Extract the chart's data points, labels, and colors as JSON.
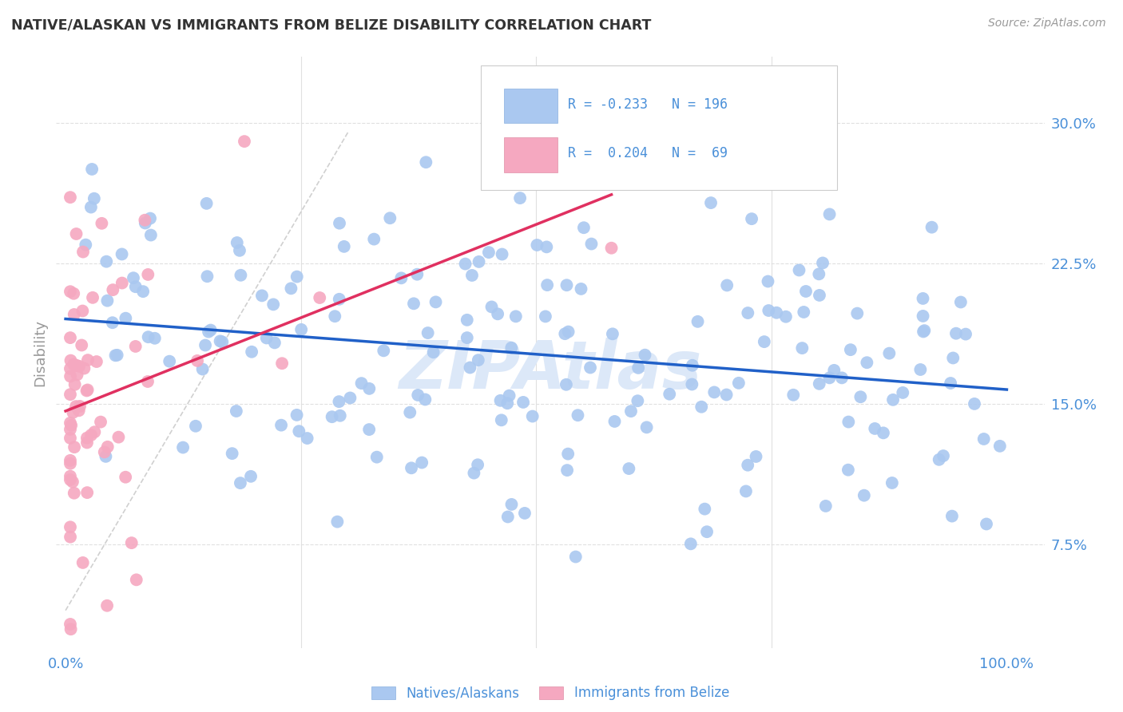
{
  "title": "NATIVE/ALASKAN VS IMMIGRANTS FROM BELIZE DISABILITY CORRELATION CHART",
  "source": "Source: ZipAtlas.com",
  "ylabel": "Disability",
  "yticks": [
    "7.5%",
    "15.0%",
    "22.5%",
    "30.0%"
  ],
  "ytick_vals": [
    0.075,
    0.15,
    0.225,
    0.3
  ],
  "ymin": 0.02,
  "ymax": 0.335,
  "xmin": -0.01,
  "xmax": 1.04,
  "blue_R": -0.233,
  "blue_N": 196,
  "pink_R": 0.204,
  "pink_N": 69,
  "legend_label_blue": "Natives/Alaskans",
  "legend_label_pink": "Immigrants from Belize",
  "scatter_blue_color": "#aac8f0",
  "scatter_pink_color": "#f5a8c0",
  "line_blue_color": "#2060c8",
  "line_pink_color": "#e03060",
  "diag_line_color": "#d0d0d0",
  "title_color": "#333333",
  "axis_label_color": "#4a90d9",
  "watermark_color": "#dce8f8",
  "background_color": "#ffffff",
  "grid_color": "#e0e0e0",
  "source_color": "#999999"
}
